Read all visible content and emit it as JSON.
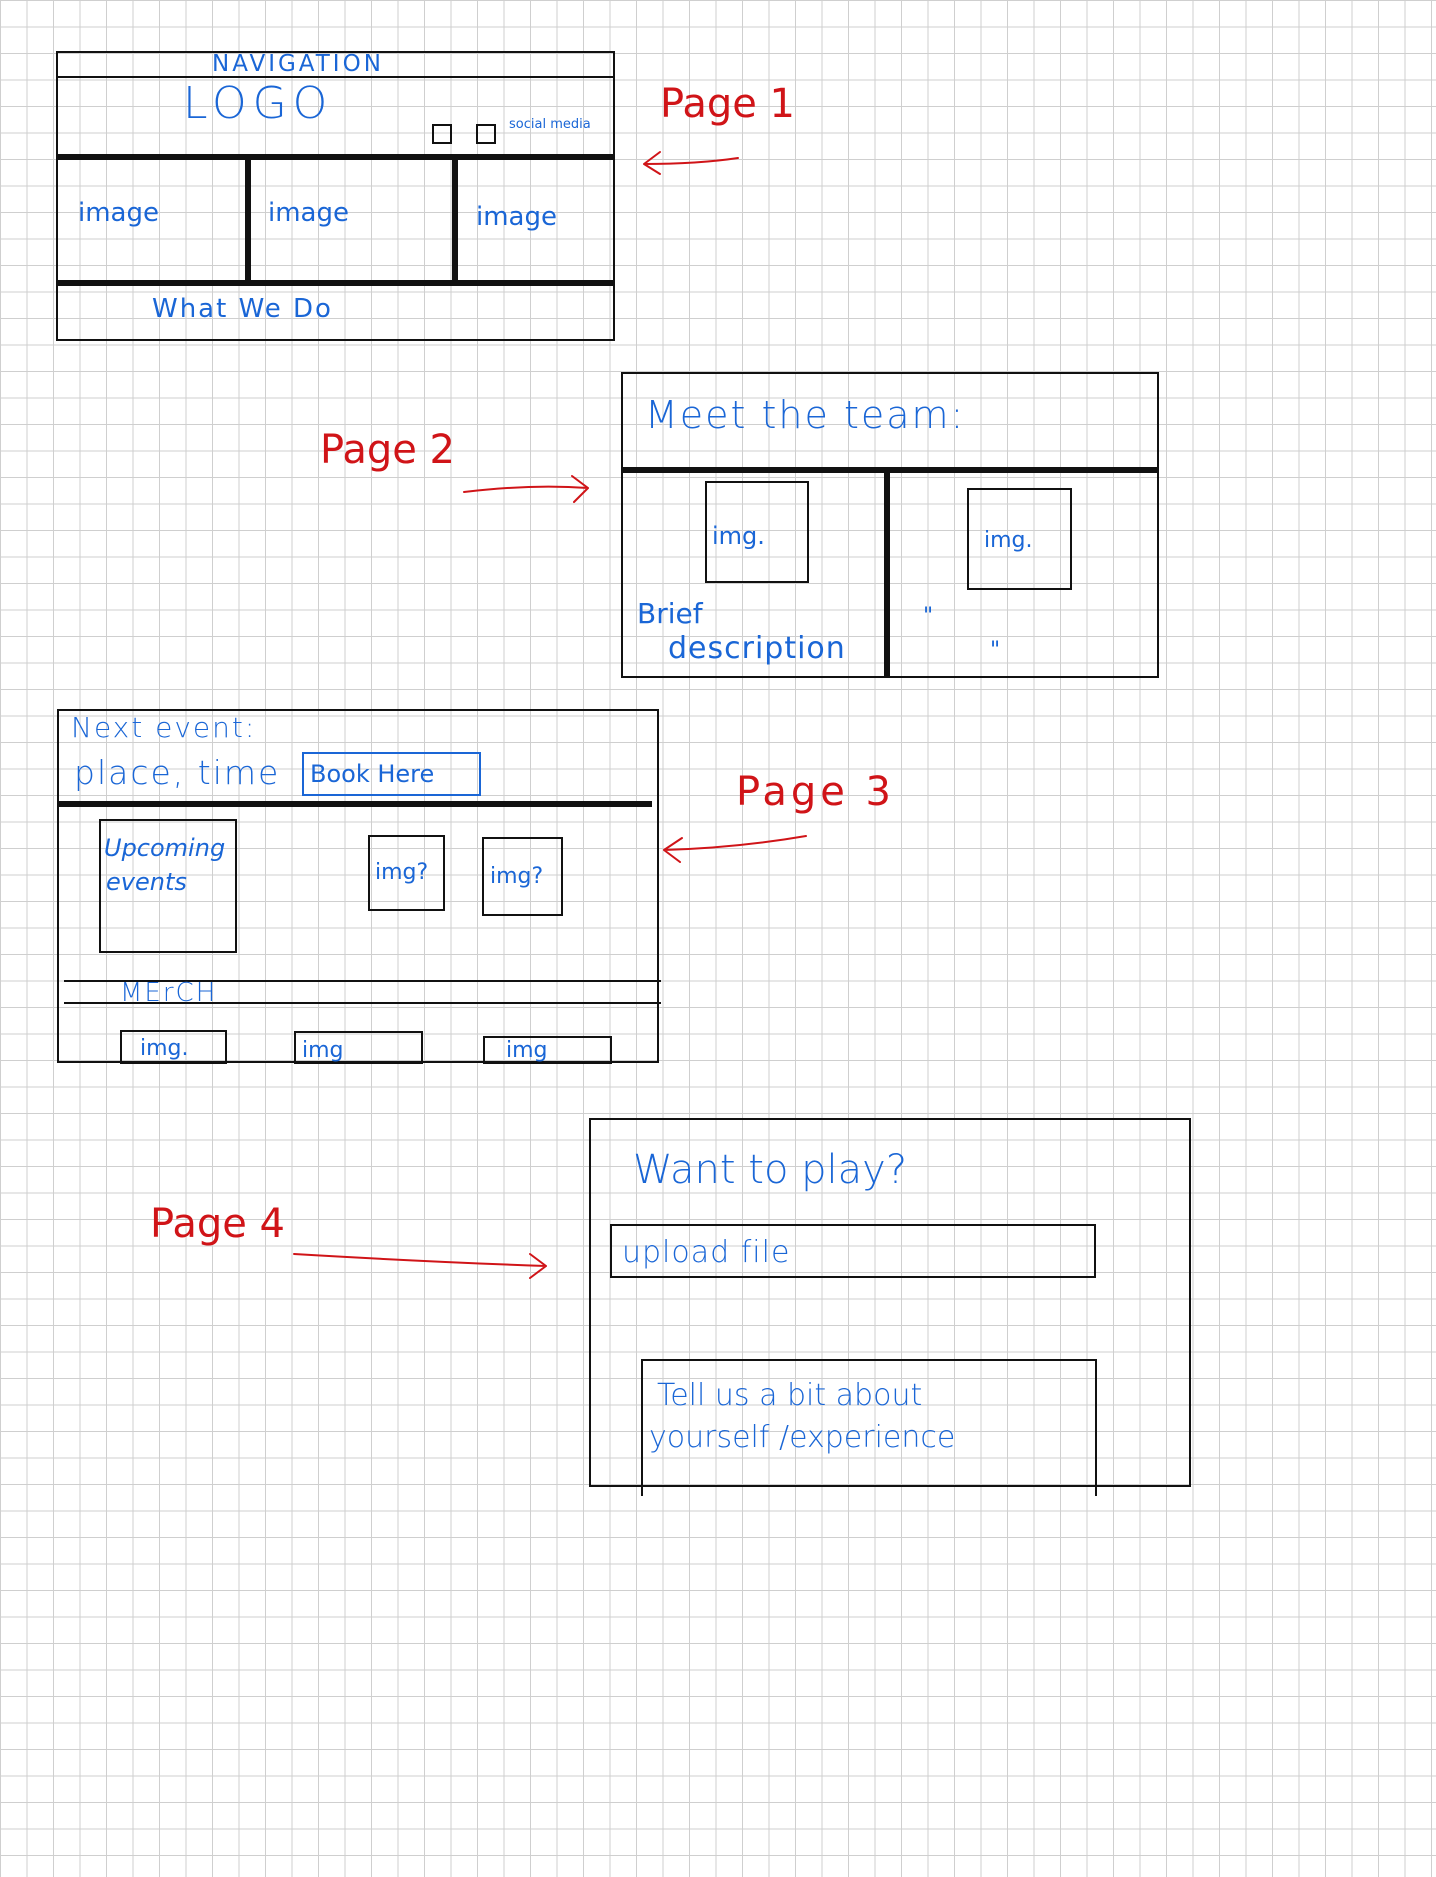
{
  "colors": {
    "ink": "#111111",
    "annotation": "#d01418",
    "label": "#1a66d6",
    "grid": "#cfcfcf"
  },
  "page1": {
    "label": "Page 1",
    "navigation": "NAVIGATION",
    "logo": "LOGO",
    "social_media": "social media",
    "images": [
      "image",
      "image",
      "image"
    ],
    "what_we_do": "What We Do"
  },
  "page2": {
    "label": "Page 2",
    "title": "Meet the team:",
    "img_left": "img.",
    "img_right": "img.",
    "brief": "Brief",
    "description": "description",
    "ditto_top": "\"",
    "ditto_bottom": "\""
  },
  "page3": {
    "label": "Page 3",
    "next_event": "Next event:",
    "place_time": "place, time",
    "book_here": "Book Here",
    "upcoming_line1": "Upcoming",
    "upcoming_line2": "events",
    "img_q1": "img?",
    "img_q2": "img?",
    "merch": "MErCH",
    "merch_imgs": [
      "img.",
      "img",
      "img"
    ]
  },
  "page4": {
    "label": "Page 4",
    "title": "Want to play?",
    "upload": "upload file",
    "tell_line1": "Tell us a bit about",
    "tell_line2": "yourself /experience"
  }
}
